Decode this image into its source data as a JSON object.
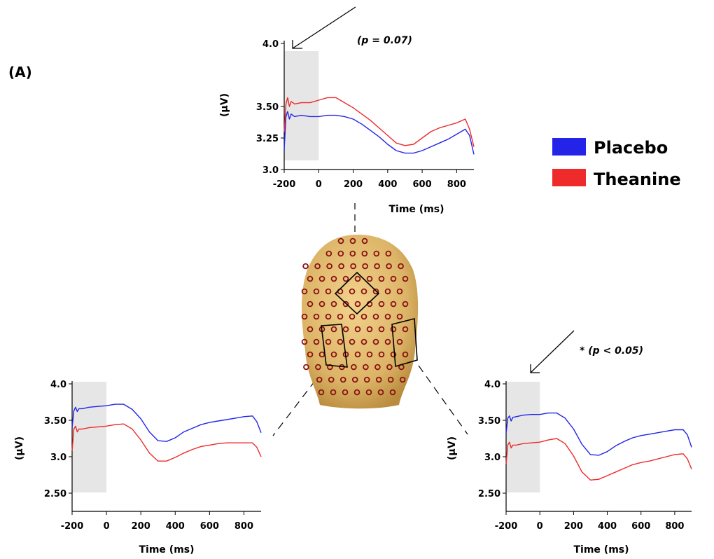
{
  "panel_label": "(A)",
  "colors": {
    "placebo": "#2424e8",
    "theanine": "#ee2a2a",
    "baseline_shade": "#e6e6e6",
    "head": "#d9b060",
    "electrode": "#8a1010"
  },
  "legend": [
    {
      "label": "Placebo",
      "color": "#2424e8"
    },
    {
      "label": "Theanine",
      "color": "#ee2a2a"
    }
  ],
  "chart_data": [
    {
      "type": "line",
      "name": "top",
      "annotation": "(p = 0.07)",
      "xlabel": "Time (ms)",
      "ylabel": "(μV)",
      "xlim": [
        -200,
        900
      ],
      "ylim": [
        3.0,
        4.0
      ],
      "xticks": [
        "-200",
        "0",
        "200",
        "400",
        "600",
        "800"
      ],
      "yticks": [
        "3.0",
        "3.25",
        "3.50",
        "4.0"
      ],
      "ytick_values": [
        3.0,
        3.25,
        3.5,
        4.0
      ],
      "baseline_window": [
        -200,
        0
      ],
      "series": [
        {
          "name": "Placebo",
          "x": [
            -200,
            -190,
            -180,
            -170,
            -160,
            -140,
            -100,
            -50,
            0,
            50,
            100,
            150,
            200,
            250,
            300,
            350,
            400,
            450,
            500,
            550,
            600,
            650,
            700,
            750,
            800,
            850,
            875,
            900
          ],
          "y": [
            3.16,
            3.42,
            3.46,
            3.4,
            3.44,
            3.42,
            3.43,
            3.42,
            3.42,
            3.43,
            3.43,
            3.42,
            3.4,
            3.36,
            3.31,
            3.26,
            3.2,
            3.15,
            3.13,
            3.13,
            3.15,
            3.18,
            3.21,
            3.24,
            3.28,
            3.32,
            3.27,
            3.12
          ]
        },
        {
          "name": "Theanine",
          "x": [
            -200,
            -190,
            -180,
            -170,
            -160,
            -140,
            -100,
            -50,
            0,
            50,
            100,
            150,
            200,
            250,
            300,
            350,
            400,
            450,
            500,
            550,
            600,
            650,
            700,
            750,
            800,
            850,
            875,
            900
          ],
          "y": [
            3.3,
            3.52,
            3.57,
            3.5,
            3.54,
            3.52,
            3.53,
            3.53,
            3.55,
            3.57,
            3.57,
            3.53,
            3.49,
            3.44,
            3.39,
            3.33,
            3.27,
            3.21,
            3.19,
            3.2,
            3.25,
            3.3,
            3.33,
            3.35,
            3.37,
            3.4,
            3.32,
            3.18
          ]
        }
      ]
    },
    {
      "type": "line",
      "name": "left",
      "annotation": "",
      "xlabel": "Time (ms)",
      "ylabel": "(μV)",
      "xlim": [
        -200,
        900
      ],
      "ylim": [
        2.25,
        4.0
      ],
      "xticks": [
        "-200",
        "0",
        "200",
        "400",
        "600",
        "800"
      ],
      "yticks": [
        "2.50",
        "3.0",
        "3.50",
        "4.0"
      ],
      "ytick_values": [
        2.5,
        3.0,
        3.5,
        4.0
      ],
      "baseline_window": [
        -200,
        0
      ],
      "series": [
        {
          "name": "Placebo",
          "x": [
            -200,
            -190,
            -180,
            -170,
            -160,
            -140,
            -100,
            -50,
            0,
            50,
            100,
            150,
            200,
            250,
            300,
            350,
            400,
            450,
            500,
            550,
            600,
            650,
            700,
            750,
            800,
            850,
            875,
            900
          ],
          "y": [
            3.4,
            3.63,
            3.68,
            3.62,
            3.66,
            3.66,
            3.68,
            3.69,
            3.7,
            3.72,
            3.72,
            3.65,
            3.52,
            3.34,
            3.22,
            3.21,
            3.26,
            3.34,
            3.39,
            3.44,
            3.47,
            3.49,
            3.51,
            3.53,
            3.55,
            3.56,
            3.48,
            3.33
          ]
        },
        {
          "name": "Theanine",
          "x": [
            -200,
            -190,
            -180,
            -170,
            -160,
            -140,
            -100,
            -50,
            0,
            50,
            100,
            150,
            200,
            250,
            300,
            350,
            400,
            450,
            500,
            550,
            600,
            650,
            700,
            750,
            800,
            850,
            875,
            900
          ],
          "y": [
            3.08,
            3.38,
            3.42,
            3.34,
            3.38,
            3.38,
            3.4,
            3.41,
            3.42,
            3.44,
            3.45,
            3.38,
            3.23,
            3.05,
            2.94,
            2.94,
            2.99,
            3.05,
            3.1,
            3.14,
            3.16,
            3.18,
            3.19,
            3.19,
            3.19,
            3.19,
            3.13,
            3.0
          ]
        }
      ]
    },
    {
      "type": "line",
      "name": "right",
      "annotation": "* (p < 0.05)",
      "xlabel": "Time (ms)",
      "ylabel": "(μV)",
      "xlim": [
        -200,
        900
      ],
      "ylim": [
        2.25,
        4.0
      ],
      "xticks": [
        "-200",
        "0",
        "200",
        "400",
        "600",
        "800"
      ],
      "yticks": [
        "2.50",
        "3.0",
        "3.50",
        "4.0"
      ],
      "ytick_values": [
        2.5,
        3.0,
        3.5,
        4.0
      ],
      "baseline_window": [
        -200,
        0
      ],
      "series": [
        {
          "name": "Placebo",
          "x": [
            -200,
            -190,
            -180,
            -170,
            -160,
            -140,
            -100,
            -50,
            0,
            50,
            100,
            150,
            200,
            250,
            300,
            350,
            400,
            450,
            500,
            550,
            600,
            650,
            700,
            750,
            800,
            850,
            875,
            900
          ],
          "y": [
            3.32,
            3.53,
            3.56,
            3.49,
            3.54,
            3.55,
            3.57,
            3.58,
            3.58,
            3.6,
            3.6,
            3.53,
            3.38,
            3.17,
            3.03,
            3.02,
            3.07,
            3.15,
            3.21,
            3.26,
            3.29,
            3.31,
            3.33,
            3.35,
            3.37,
            3.37,
            3.3,
            3.13
          ]
        },
        {
          "name": "Theanine",
          "x": [
            -200,
            -190,
            -180,
            -170,
            -160,
            -140,
            -100,
            -50,
            0,
            50,
            100,
            150,
            200,
            250,
            300,
            350,
            400,
            450,
            500,
            550,
            600,
            650,
            700,
            750,
            800,
            850,
            875,
            900
          ],
          "y": [
            2.9,
            3.16,
            3.2,
            3.12,
            3.16,
            3.16,
            3.18,
            3.19,
            3.2,
            3.23,
            3.25,
            3.18,
            3.01,
            2.79,
            2.68,
            2.69,
            2.74,
            2.79,
            2.84,
            2.89,
            2.92,
            2.94,
            2.97,
            3.0,
            3.03,
            3.04,
            2.97,
            2.83
          ]
        }
      ]
    }
  ]
}
